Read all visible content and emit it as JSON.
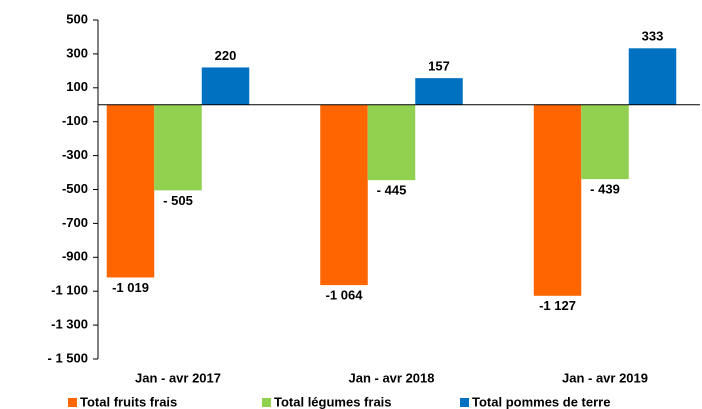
{
  "chart_data": {
    "type": "bar",
    "categories": [
      "Jan - avr 2017",
      "Jan - avr 2018",
      "Jan - avr 2019"
    ],
    "series": [
      {
        "name": "Total fruits frais",
        "color": "#ff6600",
        "values": [
          -1019,
          -1064,
          -1127
        ],
        "value_labels": [
          "-1 019",
          "-1 064",
          "-1 127"
        ]
      },
      {
        "name": "Total légumes frais",
        "color": "#92d050",
        "values": [
          -505,
          -445,
          -439
        ],
        "value_labels": [
          "- 505",
          "- 445",
          "- 439"
        ]
      },
      {
        "name": "Total pommes de terre",
        "color": "#0070c0",
        "values": [
          220,
          157,
          333
        ]
      }
    ],
    "ylim": [
      -1500,
      500
    ],
    "yticks": [
      500,
      300,
      100,
      -100,
      -300,
      -500,
      -700,
      -900,
      {
        "value": -1100,
        "label": "-1 100"
      },
      {
        "value": -1300,
        "label": "-1 300"
      },
      {
        "value": -1500,
        "label": "- 1 500"
      }
    ],
    "legend": "bottom"
  }
}
